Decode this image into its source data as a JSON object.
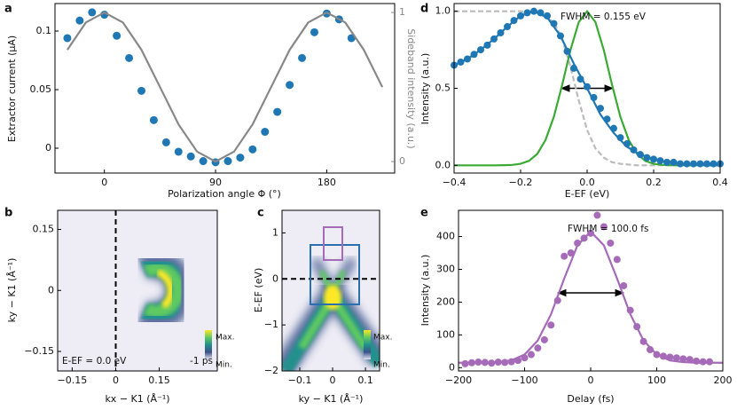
{
  "chart_data": [
    {
      "type": "scatter",
      "panel": "a",
      "xlabel": "Polarization angle Φ (°)",
      "ylabel": "Extractor current (μA)",
      "y2label": "Sideband intensity (a.u.)",
      "xlim": [
        -40,
        235
      ],
      "ylim": [
        -0.0212,
        0.1235
      ],
      "y2lim": [
        -0.077,
        1.06
      ],
      "xticks": [
        0,
        90,
        180
      ],
      "yticks": [
        0,
        0.05,
        0.1
      ],
      "y2ticks": [
        0,
        1
      ],
      "series": [
        {
          "color": "#1f77b4",
          "style": "marker",
          "x": [
            -30,
            -20,
            -10,
            0,
            10,
            20,
            30,
            40,
            50,
            60,
            70,
            80,
            90,
            100,
            110,
            120,
            130,
            140,
            150,
            160,
            170,
            180,
            190,
            200
          ],
          "values": [
            0.094,
            0.109,
            0.116,
            0.114,
            0.096,
            0.077,
            0.049,
            0.024,
            0.005,
            -0.003,
            -0.007,
            -0.011,
            -0.012,
            -0.011,
            -0.008,
            -0.001,
            0.014,
            0.031,
            0.054,
            0.077,
            0.099,
            0.115,
            0.11,
            0.094
          ]
        },
        {
          "color": "#888888",
          "style": "line",
          "axis": "y2",
          "x": [
            -30,
            -15,
            0,
            15,
            30,
            45,
            60,
            75,
            90,
            105,
            120,
            135,
            150,
            165,
            180,
            195,
            210,
            225
          ],
          "values": [
            0.75,
            0.933,
            1,
            0.933,
            0.75,
            0.5,
            0.25,
            0.067,
            0,
            0.067,
            0.25,
            0.5,
            0.75,
            0.933,
            1,
            0.933,
            0.75,
            0.5
          ]
        }
      ]
    },
    {
      "type": "heatmap",
      "panel": "b",
      "xlabel": "kx − K1 (Å⁻¹)",
      "ylabel": "ky − K1 (Å⁻¹)",
      "xlim": [
        -0.2,
        0.35
      ],
      "ylim": [
        -0.198,
        0.197
      ],
      "xticks": [
        {
          "value": -0.15,
          "label": "−0.15"
        },
        0,
        0.15
      ],
      "yticks": [
        {
          "value": -0.15,
          "label": "−0.15"
        },
        0,
        0.15
      ],
      "annotations": [
        "E-EF = 0.0 eV",
        "-1 ps"
      ],
      "colorbar_labels": [
        "Max.",
        "Min."
      ]
    },
    {
      "type": "heatmap",
      "panel": "c",
      "xlabel": "ky − K1 (Å⁻¹)",
      "ylabel": "E-EF (eV)",
      "xlim": [
        -0.154,
        0.143
      ],
      "ylim": [
        -2,
        1.49
      ],
      "xticks": [
        {
          "value": -0.1,
          "label": "−0.1"
        },
        0,
        0.1
      ],
      "yticks": [
        {
          "value": -2,
          "label": "−2"
        },
        {
          "value": -1,
          "label": "−1"
        },
        0,
        1
      ],
      "annotations": [],
      "colorbar_labels": [
        "Max.",
        "Min."
      ]
    },
    {
      "type": "scatter",
      "panel": "d",
      "xlabel": "E-EF (eV)",
      "ylabel": "Intensity (a.u.)",
      "xlim": [
        -0.4,
        0.4
      ],
      "ylim": [
        -0.05,
        1.05
      ],
      "xticks": [
        {
          "value": -0.4,
          "label": "−0.4"
        },
        {
          "value": -0.2,
          "label": "−0.2"
        },
        {
          "value": 0,
          "label": "0.0"
        },
        0.2,
        0.4
      ],
      "yticks": [
        {
          "value": 0,
          "label": "0.0"
        },
        0.5,
        {
          "value": 1,
          "label": "1.0"
        }
      ],
      "annotations": [
        "FWHM = 0.155 eV"
      ],
      "series": [
        {
          "color": "#bbbbbb",
          "style": "dashed",
          "x": [
            -0.4,
            -0.2,
            -0.15,
            -0.1,
            -0.075,
            -0.05,
            -0.025,
            0,
            0.025,
            0.05,
            0.075,
            0.1,
            0.15,
            0.4
          ],
          "values": [
            1,
            1,
            0.99,
            0.93,
            0.82,
            0.64,
            0.42,
            0.23,
            0.11,
            0.05,
            0.02,
            0.01,
            0,
            0
          ]
        },
        {
          "color": "#3aaa35",
          "style": "line",
          "x": [
            -0.4,
            -0.375,
            -0.35,
            -0.325,
            -0.3,
            -0.275,
            -0.25,
            -0.225,
            -0.2,
            -0.175,
            -0.15,
            -0.125,
            -0.1,
            -0.075,
            -0.05,
            -0.025,
            0,
            0.025,
            0.05,
            0.075,
            0.1,
            0.125,
            0.15,
            0.175,
            0.2,
            0.225,
            0.25,
            0.275,
            0.3,
            0.325,
            0.35,
            0.375,
            0.4
          ],
          "values": [
            0,
            0,
            0,
            0,
            0,
            0,
            0.001,
            0.003,
            0.01,
            0.029,
            0.074,
            0.165,
            0.315,
            0.522,
            0.749,
            0.93,
            1,
            0.93,
            0.749,
            0.522,
            0.315,
            0.165,
            0.074,
            0.029,
            0.01,
            0.003,
            0.001,
            0,
            0,
            0,
            0,
            0,
            0
          ]
        },
        {
          "color": "#1f77b4",
          "style": "marker",
          "x": [
            -0.4,
            -0.38,
            -0.36,
            -0.34,
            -0.32,
            -0.3,
            -0.28,
            -0.26,
            -0.24,
            -0.22,
            -0.2,
            -0.18,
            -0.16,
            -0.14,
            -0.12,
            -0.1,
            -0.08,
            -0.06,
            -0.04,
            -0.02,
            0,
            0.02,
            0.04,
            0.06,
            0.08,
            0.1,
            0.12,
            0.14,
            0.16,
            0.18,
            0.2,
            0.22,
            0.24,
            0.26,
            0.28,
            0.3,
            0.32,
            0.34,
            0.36,
            0.38,
            0.4
          ],
          "values": [
            0.65,
            0.67,
            0.69,
            0.72,
            0.75,
            0.78,
            0.82,
            0.86,
            0.9,
            0.94,
            0.97,
            0.99,
            1.0,
            0.99,
            0.97,
            0.92,
            0.84,
            0.74,
            0.63,
            0.56,
            0.51,
            0.44,
            0.37,
            0.3,
            0.24,
            0.18,
            0.14,
            0.1,
            0.07,
            0.05,
            0.04,
            0.03,
            0.02,
            0.02,
            0.01,
            0.01,
            0.01,
            0.01,
            0.01,
            0.01,
            0.01
          ]
        },
        {
          "color": "#1f77b4",
          "style": "line",
          "x": [
            -0.4,
            -0.36,
            -0.32,
            -0.28,
            -0.24,
            -0.2,
            -0.16,
            -0.12,
            -0.08,
            -0.04,
            0,
            0.04,
            0.08,
            0.12,
            0.16,
            0.2,
            0.24,
            0.28,
            0.32,
            0.36,
            0.4
          ],
          "values": [
            0.65,
            0.69,
            0.75,
            0.82,
            0.9,
            0.97,
            1.0,
            0.96,
            0.84,
            0.66,
            0.5,
            0.33,
            0.21,
            0.12,
            0.07,
            0.04,
            0.02,
            0.01,
            0.005,
            0,
            0
          ]
        }
      ]
    },
    {
      "type": "scatter",
      "panel": "e",
      "xlabel": "Delay (fs)",
      "ylabel": "Intensity (a.u.)",
      "xlim": [
        -200,
        200
      ],
      "ylim": [
        -10,
        480
      ],
      "xticks": [
        {
          "value": -200,
          "label": "−200"
        },
        {
          "value": -100,
          "label": "−100"
        },
        0,
        100,
        200
      ],
      "yticks": [
        0,
        100,
        200,
        300,
        400
      ],
      "annotations": [
        "FWHM = 100.0 fs"
      ],
      "series": [
        {
          "color": "#a66bb8",
          "style": "marker",
          "x": [
            -190,
            -180,
            -170,
            -160,
            -150,
            -140,
            -130,
            -120,
            -110,
            -100,
            -90,
            -80,
            -70,
            -60,
            -50,
            -40,
            -30,
            -20,
            -10,
            0,
            10,
            20,
            30,
            40,
            50,
            60,
            70,
            80,
            90,
            100,
            110,
            120,
            130,
            140,
            150,
            160,
            170,
            180
          ],
          "values": [
            12,
            15,
            17,
            16,
            14,
            17,
            16,
            18,
            22,
            30,
            40,
            60,
            85,
            130,
            205,
            340,
            350,
            380,
            395,
            410,
            465,
            430,
            380,
            330,
            250,
            175,
            125,
            80,
            55,
            40,
            35,
            32,
            30,
            27,
            25,
            20,
            18,
            18
          ]
        },
        {
          "color": "#a66bb8",
          "style": "line",
          "x": [
            -200,
            -180,
            -160,
            -140,
            -120,
            -100,
            -80,
            -60,
            -40,
            -20,
            0,
            20,
            40,
            60,
            80,
            100,
            120,
            140,
            160,
            180,
            200
          ],
          "values": [
            15,
            15,
            15,
            17,
            22,
            40,
            83,
            163,
            272,
            373,
            415,
            373,
            272,
            163,
            83,
            40,
            22,
            17,
            15,
            15,
            15
          ]
        }
      ]
    }
  ]
}
